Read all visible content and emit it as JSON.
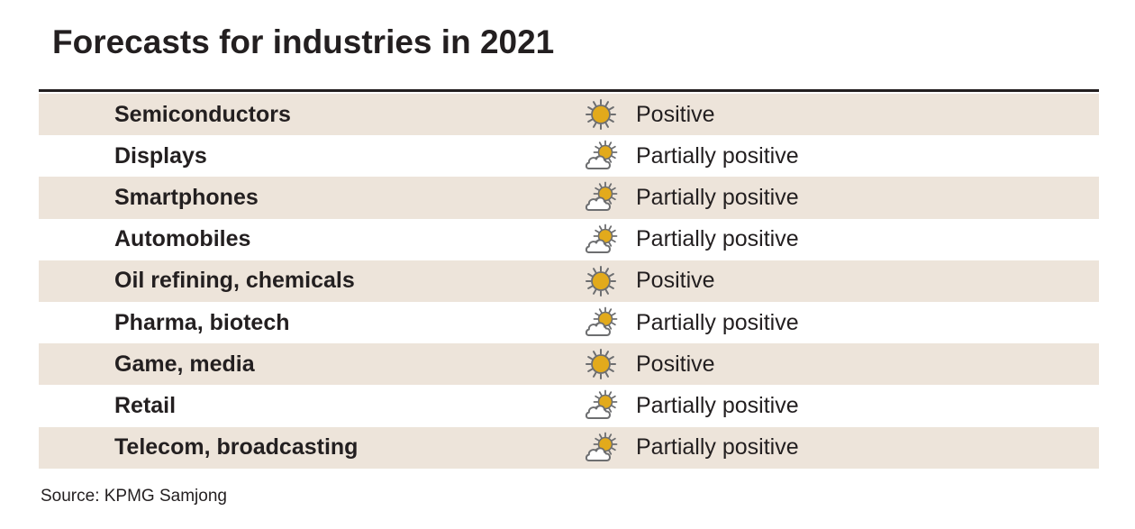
{
  "title": "Forecasts for industries in 2021",
  "colors": {
    "shaded_row": "#ede4da",
    "sun": "#e2aa1c",
    "icon_stroke": "#6d6e70",
    "text": "#231f20"
  },
  "rows": [
    {
      "industry": "Semiconductors",
      "forecast": "Positive",
      "icon": "sun-icon"
    },
    {
      "industry": "Displays",
      "forecast": "Partially positive",
      "icon": "sun-behind-cloud-icon"
    },
    {
      "industry": "Smartphones",
      "forecast": "Partially positive",
      "icon": "sun-behind-cloud-icon"
    },
    {
      "industry": "Automobiles",
      "forecast": "Partially positive",
      "icon": "sun-behind-cloud-icon"
    },
    {
      "industry": "Oil refining, chemicals",
      "forecast": "Positive",
      "icon": "sun-icon"
    },
    {
      "industry": "Pharma, biotech",
      "forecast": "Partially positive",
      "icon": "sun-behind-cloud-icon"
    },
    {
      "industry": "Game, media",
      "forecast": "Positive",
      "icon": "sun-icon"
    },
    {
      "industry": "Retail",
      "forecast": "Partially positive",
      "icon": "sun-behind-cloud-icon"
    },
    {
      "industry": "Telecom, broadcasting",
      "forecast": "Partially positive",
      "icon": "sun-behind-cloud-icon"
    }
  ],
  "source": "Source: KPMG Samjong"
}
